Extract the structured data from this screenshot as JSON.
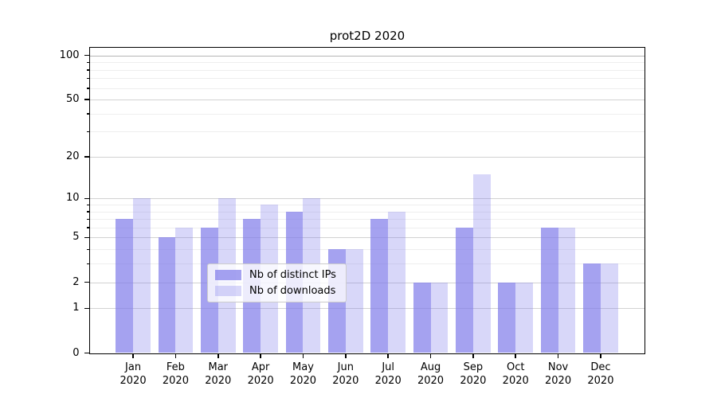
{
  "chart_data": {
    "type": "bar",
    "title": "prot2D 2020",
    "categories": [
      "Jan",
      "Feb",
      "Mar",
      "Apr",
      "May",
      "Jun",
      "Jul",
      "Aug",
      "Sep",
      "Oct",
      "Nov",
      "Dec"
    ],
    "x_tick_year": "2020",
    "series": [
      {
        "name": "Nb of distinct IPs",
        "color": "rgba(127,122,234,0.70)",
        "values": [
          7,
          5,
          6,
          7,
          8,
          4,
          7,
          2,
          6,
          2,
          6,
          3
        ]
      },
      {
        "name": "Nb of downloads",
        "color": "rgba(127,122,234,0.30)",
        "values": [
          10,
          6,
          10,
          9,
          10,
          4,
          8,
          2,
          15,
          2,
          6,
          3
        ]
      }
    ],
    "y_axis": {
      "scale": "log1p",
      "ylim": [
        0,
        113.6
      ],
      "major_ticks": [
        0,
        1,
        2,
        5,
        10,
        20,
        50,
        100
      ],
      "minor_ticks": [
        3,
        4,
        6,
        7,
        8,
        9,
        30,
        40,
        60,
        70,
        80,
        90
      ]
    },
    "legend_position": "lower center inside",
    "grid": true
  }
}
